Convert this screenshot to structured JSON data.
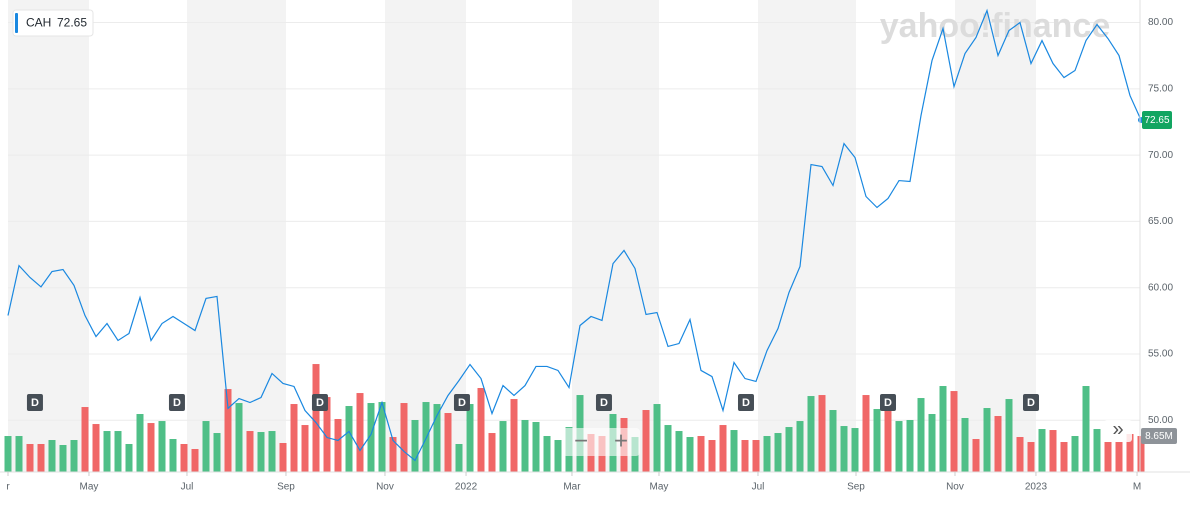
{
  "chart_data": {
    "type": "line",
    "symbol": "CAH",
    "watermark": "yahoo!finance",
    "controls": [
      "−",
      "+",
      "»"
    ],
    "x": [
      0,
      1,
      2,
      3,
      4,
      5,
      6,
      7,
      8,
      9,
      10,
      11,
      12,
      13,
      14,
      15,
      16,
      17,
      18,
      19,
      20,
      21,
      22,
      23,
      24,
      25,
      26,
      27,
      28,
      29,
      30,
      31,
      32,
      33,
      34,
      35,
      36,
      37,
      38,
      39,
      40,
      41,
      42,
      43,
      44,
      45,
      46,
      47,
      48,
      49,
      50,
      51,
      52,
      53,
      54,
      55,
      56,
      57,
      58,
      59,
      60,
      61,
      62,
      63,
      64,
      65,
      66,
      67,
      68,
      69,
      70,
      71,
      72,
      73,
      74,
      75,
      76,
      77,
      78,
      79,
      80,
      81,
      82,
      83,
      84,
      85,
      86,
      87,
      88,
      89,
      90,
      91,
      92,
      93,
      94,
      95,
      96,
      97,
      98,
      99,
      100,
      101,
      102,
      103
    ],
    "xlim": [
      0,
      103
    ],
    "xticks": [
      {
        "value": 0,
        "label": "r"
      },
      {
        "value": 7.36,
        "label": "May"
      },
      {
        "value": 16.27,
        "label": "Jul"
      },
      {
        "value": 25.27,
        "label": "Sep"
      },
      {
        "value": 34.27,
        "label": "Nov"
      },
      {
        "value": 41.64,
        "label": "2022"
      },
      {
        "value": 51.27,
        "label": "Mar"
      },
      {
        "value": 59.18,
        "label": "May"
      },
      {
        "value": 68.18,
        "label": "Jul"
      },
      {
        "value": 77.09,
        "label": "Sep"
      },
      {
        "value": 86.09,
        "label": "Nov"
      },
      {
        "value": 93.45,
        "label": "2023"
      },
      {
        "value": 102.64,
        "label": "M"
      }
    ],
    "ylim": [
      46.1,
      81.7
    ],
    "yticks": [
      {
        "value": 50,
        "label": "50.00"
      },
      {
        "value": 55,
        "label": "55.00"
      },
      {
        "value": 60,
        "label": "60.00"
      },
      {
        "value": 65,
        "label": "65.00"
      },
      {
        "value": 70,
        "label": "70.00"
      },
      {
        "value": 75,
        "label": "75.00"
      },
      {
        "value": 80,
        "label": "80.00"
      }
    ],
    "grid": true,
    "series": [
      {
        "name": "72.65",
        "color": "#1a88e0",
        "values": [
          57.9,
          61.67,
          60.77,
          60.06,
          61.22,
          61.37,
          60.17,
          57.9,
          56.32,
          57.3,
          56.02,
          56.55,
          59.26,
          56.02,
          57.3,
          57.83,
          57.3,
          56.77,
          59.19,
          59.34,
          50.9,
          51.64,
          51.34,
          51.72,
          53.53,
          52.78,
          52.55,
          50.74,
          49.83,
          48.7,
          48.48,
          49.16,
          47.72,
          48.93,
          51.34,
          48.48,
          47.65,
          46.97,
          48.63,
          50.36,
          51.87,
          53.0,
          54.21,
          53.15,
          50.51,
          52.62,
          51.87,
          52.62,
          54.06,
          54.06,
          53.76,
          52.47,
          57.15,
          57.83,
          57.53,
          61.82,
          62.81,
          61.45,
          57.98,
          58.13,
          55.57,
          55.79,
          57.6,
          53.76,
          53.3,
          50.74,
          54.36,
          53.15,
          52.93,
          55.26,
          56.92,
          59.64,
          61.6,
          69.29,
          69.14,
          67.71,
          70.87,
          69.82,
          66.88,
          66.05,
          66.73,
          68.08,
          68.01,
          72.99,
          77.13,
          79.55,
          75.17,
          77.66,
          78.87,
          80.9,
          77.51,
          79.4,
          80.0,
          76.91,
          78.64,
          76.91,
          75.85,
          76.38,
          78.64,
          79.85,
          78.79,
          77.51,
          74.49,
          72.65
        ]
      }
    ],
    "last_color": "#12a561",
    "volume": {
      "values": [
        8.65,
        8.65,
        6.73,
        6.73,
        7.69,
        6.49,
        7.69,
        15.62,
        11.53,
        9.85,
        9.85,
        6.73,
        13.94,
        11.77,
        12.25,
        7.93,
        6.73,
        5.53,
        12.25,
        9.37,
        19.94,
        16.58,
        9.85,
        9.61,
        9.85,
        6.97,
        16.34,
        11.29,
        25.95,
        18.02,
        12.74,
        15.86,
        18.98,
        16.58,
        16.82,
        8.41,
        16.58,
        12.5,
        16.82,
        16.34,
        14.18,
        6.73,
        16.34,
        20.19,
        9.37,
        12.25,
        17.54,
        12.5,
        12.02,
        8.65,
        7.69,
        10.81,
        18.5,
        9.13,
        8.65,
        13.94,
        12.98,
        8.41,
        14.9,
        16.34,
        11.29,
        9.85,
        8.41,
        8.65,
        7.69,
        11.29,
        10.09,
        7.69,
        7.69,
        8.65,
        9.37,
        10.81,
        12.25,
        18.26,
        18.5,
        14.9,
        11.05,
        10.57,
        18.5,
        15.14,
        17.54,
        12.25,
        12.5,
        17.78,
        13.94,
        20.67,
        19.46,
        12.98,
        7.93,
        15.38,
        13.46,
        17.54,
        8.41,
        7.21,
        10.33,
        10.09,
        7.21,
        8.65,
        20.67,
        10.33,
        7.21,
        7.21,
        9.13,
        8.65
      ],
      "colors": [
        "#4fbf87",
        "#4fbf87",
        "#f06767",
        "#f06767",
        "#4fbf87",
        "#4fbf87",
        "#4fbf87",
        "#f06767",
        "#f06767",
        "#4fbf87",
        "#4fbf87",
        "#4fbf87",
        "#4fbf87",
        "#f06767",
        "#4fbf87",
        "#4fbf87",
        "#f06767",
        "#f06767",
        "#4fbf87",
        "#4fbf87",
        "#f06767",
        "#4fbf87",
        "#f06767",
        "#4fbf87",
        "#4fbf87",
        "#f06767",
        "#f06767",
        "#f06767",
        "#f06767",
        "#f06767",
        "#f06767",
        "#4fbf87",
        "#f06767",
        "#4fbf87",
        "#4fbf87",
        "#f06767",
        "#f06767",
        "#4fbf87",
        "#4fbf87",
        "#4fbf87",
        "#f06767",
        "#4fbf87",
        "#4fbf87",
        "#f06767",
        "#f06767",
        "#4fbf87",
        "#f06767",
        "#4fbf87",
        "#4fbf87",
        "#4fbf87",
        "#4fbf87",
        "#4fbf87",
        "#4fbf87",
        "#f06767",
        "#f06767",
        "#4fbf87",
        "#f06767",
        "#4fbf87",
        "#f06767",
        "#4fbf87",
        "#4fbf87",
        "#4fbf87",
        "#4fbf87",
        "#f06767",
        "#f06767",
        "#f06767",
        "#4fbf87",
        "#f06767",
        "#f06767",
        "#4fbf87",
        "#4fbf87",
        "#4fbf87",
        "#4fbf87",
        "#4fbf87",
        "#f06767",
        "#4fbf87",
        "#4fbf87",
        "#4fbf87",
        "#f06767",
        "#4fbf87",
        "#f06767",
        "#4fbf87",
        "#4fbf87",
        "#4fbf87",
        "#4fbf87",
        "#4fbf87",
        "#f06767",
        "#4fbf87",
        "#f06767",
        "#4fbf87",
        "#f06767",
        "#4fbf87",
        "#f06767",
        "#f06767",
        "#4fbf87",
        "#f06767",
        "#f06767",
        "#4fbf87",
        "#4fbf87",
        "#4fbf87",
        "#f06767",
        "#f06767",
        "#f06767",
        "#f06767"
      ],
      "last_label": "8.65M"
    },
    "dividends": {
      "label": "D",
      "x": [
        2.45,
        15.36,
        28.36,
        41.27,
        54.18,
        67.09,
        80,
        93
      ]
    }
  }
}
